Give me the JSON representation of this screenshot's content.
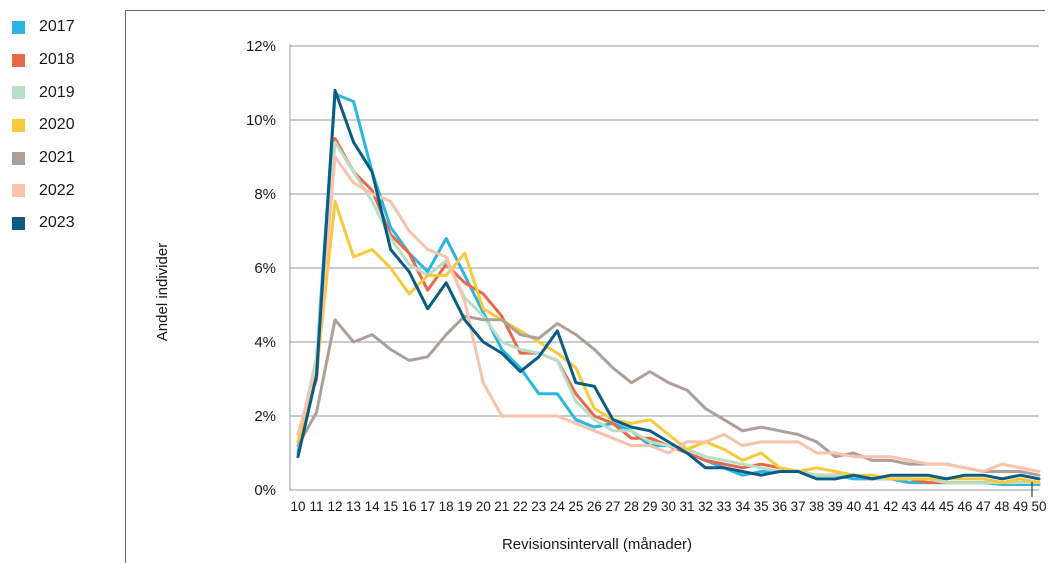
{
  "chart_data": {
    "type": "line",
    "xlabel": "Revisionsintervall (månader)",
    "ylabel": "Andel individer",
    "x": [
      10,
      11,
      12,
      13,
      14,
      15,
      16,
      17,
      18,
      19,
      20,
      21,
      22,
      23,
      24,
      25,
      26,
      27,
      28,
      29,
      30,
      31,
      32,
      33,
      34,
      35,
      36,
      37,
      38,
      39,
      40,
      41,
      42,
      43,
      44,
      45,
      46,
      47,
      48,
      49,
      50
    ],
    "ylim": [
      0,
      12
    ],
    "yticks": [
      0,
      2,
      4,
      6,
      8,
      10,
      12
    ],
    "ytick_labels": [
      "0%",
      "2%",
      "4%",
      "6%",
      "8%",
      "10%",
      "12%"
    ],
    "grid": true,
    "legend_position": "left",
    "series": [
      {
        "name": "2017",
        "color": "#2bb5e0",
        "values": [
          1.0,
          3.5,
          10.7,
          10.5,
          8.6,
          7.1,
          6.4,
          5.9,
          6.8,
          5.8,
          4.8,
          3.8,
          3.3,
          2.6,
          2.6,
          1.9,
          1.7,
          1.8,
          1.6,
          1.2,
          1.2,
          1.0,
          0.8,
          0.6,
          0.4,
          0.5,
          0.5,
          0.5,
          0.4,
          0.4,
          0.3,
          0.3,
          0.3,
          0.2,
          0.2,
          0.2,
          0.2,
          0.2,
          0.15,
          0.15,
          0.15
        ]
      },
      {
        "name": "2018",
        "color": "#e8694a",
        "values": [
          1.5,
          3.0,
          9.5,
          8.6,
          8.1,
          6.9,
          6.4,
          5.4,
          6.1,
          5.6,
          5.3,
          4.7,
          3.7,
          3.7,
          3.5,
          2.6,
          2.0,
          1.8,
          1.4,
          1.4,
          1.2,
          1.0,
          0.8,
          0.7,
          0.6,
          0.7,
          0.6,
          0.5,
          0.4,
          0.4,
          0.4,
          0.3,
          0.3,
          0.3,
          0.2,
          0.2,
          0.2,
          0.2,
          0.2,
          0.2,
          0.2
        ]
      },
      {
        "name": "2019",
        "color": "#b9dec5",
        "values": [
          1.3,
          3.6,
          9.4,
          8.6,
          7.8,
          6.8,
          6.1,
          5.8,
          6.2,
          5.2,
          4.7,
          4.0,
          3.8,
          3.7,
          3.5,
          2.4,
          1.9,
          1.6,
          1.6,
          1.3,
          1.2,
          1.1,
          0.9,
          0.8,
          0.7,
          0.6,
          0.5,
          0.5,
          0.4,
          0.4,
          0.4,
          0.3,
          0.3,
          0.3,
          0.3,
          0.2,
          0.2,
          0.2,
          0.2,
          0.2,
          0.2
        ]
      },
      {
        "name": "2020",
        "color": "#f8c93a",
        "values": [
          1.3,
          3.2,
          7.8,
          6.3,
          6.5,
          6.0,
          5.3,
          5.8,
          5.8,
          6.4,
          4.9,
          4.6,
          4.3,
          4.0,
          3.7,
          3.3,
          2.2,
          1.9,
          1.8,
          1.9,
          1.5,
          1.1,
          1.3,
          1.1,
          0.8,
          1.0,
          0.6,
          0.5,
          0.6,
          0.5,
          0.4,
          0.4,
          0.3,
          0.3,
          0.3,
          0.3,
          0.3,
          0.3,
          0.2,
          0.3,
          0.2
        ]
      },
      {
        "name": "2021",
        "color": "#ada099",
        "values": [
          1.2,
          2.1,
          4.6,
          4.0,
          4.2,
          3.8,
          3.5,
          3.6,
          4.2,
          4.7,
          4.6,
          4.6,
          4.2,
          4.1,
          4.5,
          4.2,
          3.8,
          3.3,
          2.9,
          3.2,
          2.9,
          2.7,
          2.2,
          1.9,
          1.6,
          1.7,
          1.6,
          1.5,
          1.3,
          0.9,
          1.0,
          0.8,
          0.8,
          0.7,
          0.7,
          0.7,
          0.6,
          0.5,
          0.5,
          0.5,
          0.4
        ]
      },
      {
        "name": "2022",
        "color": "#f7c2ae",
        "values": [
          1.5,
          3.3,
          9.0,
          8.3,
          8.0,
          7.8,
          7.0,
          6.5,
          6.3,
          5.1,
          2.9,
          2.0,
          2.0,
          2.0,
          2.0,
          1.8,
          1.6,
          1.4,
          1.2,
          1.2,
          1.0,
          1.3,
          1.3,
          1.5,
          1.2,
          1.3,
          1.3,
          1.3,
          1.0,
          1.0,
          0.9,
          0.9,
          0.9,
          0.8,
          0.7,
          0.7,
          0.6,
          0.5,
          0.7,
          0.6,
          0.5
        ]
      },
      {
        "name": "2023",
        "color": "#0b5c85",
        "values": [
          0.9,
          3.1,
          10.8,
          9.4,
          8.6,
          6.5,
          5.9,
          4.9,
          5.6,
          4.6,
          4.0,
          3.7,
          3.2,
          3.6,
          4.3,
          2.9,
          2.8,
          1.9,
          1.7,
          1.6,
          1.3,
          1.0,
          0.6,
          0.6,
          0.5,
          0.4,
          0.5,
          0.5,
          0.3,
          0.3,
          0.4,
          0.3,
          0.4,
          0.4,
          0.4,
          0.3,
          0.4,
          0.4,
          0.3,
          0.4,
          0.3
        ]
      }
    ]
  }
}
